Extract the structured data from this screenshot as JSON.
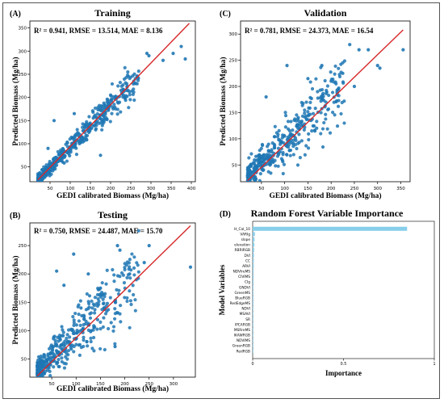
{
  "chart_data": [
    {
      "id": "A",
      "type": "scatter",
      "panel_label": "(A)",
      "title": "Training",
      "stats_text": "R² = 0.941, RMSE = 13.514, MAE = 8.136",
      "xlabel": "GEDI calibrated Biomass (Mg/ha)",
      "ylabel": "Predicted Biomass (Mg/ha)",
      "xlim": [
        0,
        410
      ],
      "ylim": [
        18,
        365
      ],
      "xticks": [
        50,
        100,
        150,
        200,
        250,
        300,
        350,
        400
      ],
      "yticks": [
        50,
        100,
        150,
        200,
        250,
        300,
        350
      ],
      "fit_line": [
        [
          20,
          22
        ],
        [
          395,
          360
        ]
      ],
      "point_color": "#1f77b4",
      "line_color": "#d62728",
      "outliers": [
        [
          385,
          283
        ],
        [
          330,
          280
        ],
        [
          375,
          310
        ],
        [
          355,
          295
        ],
        [
          290,
          295
        ],
        [
          295,
          290
        ],
        [
          175,
          75
        ],
        [
          140,
          110
        ],
        [
          60,
          150
        ],
        [
          110,
          165
        ],
        [
          260,
          230
        ],
        [
          240,
          215
        ],
        [
          45,
          90
        ]
      ],
      "cluster": {
        "x_min": 20,
        "x_max": 270,
        "slope": 0.9,
        "intercept": 3,
        "noise": 10,
        "count": 520
      }
    },
    {
      "id": "C",
      "type": "scatter",
      "panel_label": "(C)",
      "title": "Validation",
      "stats_text": "R² = 0.781, RMSE = 24.373, MAE = 16.54",
      "xlabel": "GEDI calibrated Biomass (Mg/ha)",
      "ylabel": "Predicted Biomass (Mg/ha)",
      "xlim": [
        5,
        370
      ],
      "ylim": [
        18,
        325
      ],
      "xticks": [
        50,
        100,
        150,
        200,
        250,
        300,
        350
      ],
      "yticks": [
        50,
        100,
        150,
        200,
        250,
        300
      ],
      "fit_line": [
        [
          20,
          20
        ],
        [
          355,
          308
        ]
      ],
      "point_color": "#1f77b4",
      "line_color": "#d62728",
      "outliers": [
        [
          355,
          270
        ],
        [
          305,
          235
        ],
        [
          300,
          240
        ],
        [
          280,
          270
        ],
        [
          260,
          270
        ],
        [
          240,
          280
        ],
        [
          60,
          180
        ],
        [
          105,
          240
        ],
        [
          150,
          215
        ],
        [
          200,
          210
        ],
        [
          180,
          240
        ],
        [
          90,
          75
        ],
        [
          250,
          200
        ],
        [
          225,
          225
        ]
      ],
      "cluster": {
        "x_min": 20,
        "x_max": 230,
        "slope": 0.87,
        "intercept": 8,
        "noise": 22,
        "count": 420
      }
    },
    {
      "id": "B",
      "type": "scatter",
      "panel_label": "(B)",
      "title": "Testing",
      "stats_text": "R² = 0.750, RMSE = 24.487, MAE = 15.70",
      "xlabel": "GEDI calibrated Biomass (Mg/ha)",
      "ylabel": "Predicted Biomass (Mg/ha)",
      "xlim": [
        5,
        345
      ],
      "ylim": [
        18,
        290
      ],
      "xticks": [
        50,
        100,
        150,
        200,
        250,
        300
      ],
      "yticks": [
        50,
        100,
        150,
        200,
        250
      ],
      "fit_line": [
        [
          20,
          20
        ],
        [
          335,
          285
        ]
      ],
      "point_color": "#1f77b4",
      "line_color": "#d62728",
      "outliers": [
        [
          335,
          212
        ],
        [
          250,
          250
        ],
        [
          240,
          220
        ],
        [
          185,
          250
        ],
        [
          190,
          242
        ],
        [
          95,
          235
        ],
        [
          60,
          205
        ],
        [
          75,
          180
        ],
        [
          180,
          72
        ],
        [
          125,
          200
        ],
        [
          210,
          200
        ],
        [
          150,
          175
        ],
        [
          110,
          140
        ]
      ],
      "cluster": {
        "x_min": 20,
        "x_max": 230,
        "slope": 0.82,
        "intercept": 10,
        "noise": 22,
        "count": 420
      }
    },
    {
      "id": "D",
      "type": "bar",
      "orientation": "horizontal",
      "panel_label": "(D)",
      "title": "Random Forest Variable Importance",
      "xlabel": "Importance",
      "ylabel": "Model Variables",
      "xlim": [
        0,
        1.0
      ],
      "xticks": [
        0.0,
        0.5,
        1.0
      ],
      "bar_color": "#87ceeb",
      "categories": [
        "H_Cal_10",
        "VARIg",
        "slope",
        "elevation",
        "RBRIRGB",
        "DVI",
        "CC",
        "ARVI",
        "NDVIreMS",
        "CIVIMS",
        "CIg",
        "GNDVI",
        "GreenMS",
        "BlueRGB",
        "RedEdgeMS",
        "NDVI",
        "MSAVI",
        "SR",
        "IPCARGB",
        "MSRreMS",
        "IKAWRGB",
        "NDVIMS",
        "GreenRGB",
        "RedRGB"
      ],
      "values": [
        0.85,
        0.012,
        0.01,
        0.009,
        0.008,
        0.007,
        0.006,
        0.006,
        0.005,
        0.005,
        0.005,
        0.004,
        0.004,
        0.004,
        0.004,
        0.003,
        0.003,
        0.003,
        0.003,
        0.003,
        0.002,
        0.002,
        0.002,
        0.002
      ]
    }
  ]
}
